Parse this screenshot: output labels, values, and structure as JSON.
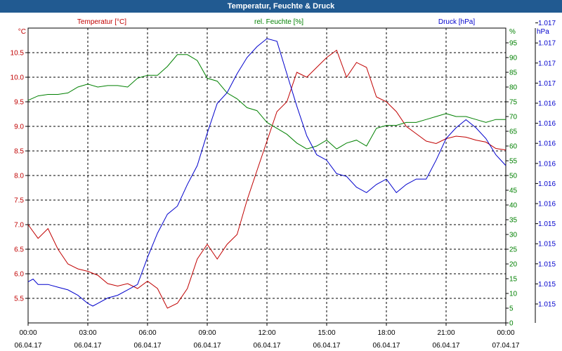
{
  "title": "Temperatur, Feuchte & Druck",
  "chart_data": {
    "type": "line",
    "grid": true,
    "x_start": "2017-04-06T00:00",
    "x_end": "2017-04-07T00:00",
    "x_ticks": [
      {
        "time": "00:00",
        "date": "06.04.17"
      },
      {
        "time": "03:00",
        "date": "06.04.17"
      },
      {
        "time": "06:00",
        "date": "06.04.17"
      },
      {
        "time": "09:00",
        "date": "06.04.17"
      },
      {
        "time": "12:00",
        "date": "06.04.17"
      },
      {
        "time": "15:00",
        "date": "06.04.17"
      },
      {
        "time": "18:00",
        "date": "06.04.17"
      },
      {
        "time": "21:00",
        "date": "06.04.17"
      },
      {
        "time": "00:00",
        "date": "07.04.17"
      }
    ],
    "axes": {
      "temperature": {
        "label": "Temperatur [°C]",
        "unit": "°C",
        "color": "#c00000",
        "range": [
          5.0,
          11.0
        ],
        "ticks": [
          "5.5",
          "6.0",
          "6.5",
          "7.0",
          "7.5",
          "8.0",
          "8.5",
          "9.0",
          "9.5",
          "10.0",
          "10.5"
        ]
      },
      "humidity": {
        "label": "rel. Feuchte [%]",
        "unit": "%",
        "color": "#008000",
        "range": [
          0,
          100
        ],
        "ticks": [
          "0",
          "5",
          "10",
          "15",
          "20",
          "25",
          "30",
          "35",
          "40",
          "45",
          "50",
          "55",
          "60",
          "65",
          "70",
          "75",
          "80",
          "85",
          "90",
          "95"
        ]
      },
      "pressure": {
        "label": "Druck [hPa]",
        "unit": "hPa",
        "color": "#0000cc",
        "ticks": [
          "1.015",
          "1.015",
          "1.015",
          "1.015",
          "1.015",
          "1.016",
          "1.016",
          "1.016",
          "1.016",
          "1.016",
          "1.016",
          "1.017",
          "1.017",
          "1.017",
          "1.017",
          "1.017",
          "1.017"
        ]
      }
    },
    "series": [
      {
        "name": "Temperatur [°C]",
        "axis": "temperature",
        "color": "#c00000",
        "x": [
          "00:00",
          "00:30",
          "01:00",
          "01:30",
          "02:00",
          "02:30",
          "03:00",
          "03:30",
          "04:00",
          "04:30",
          "05:00",
          "05:30",
          "06:00",
          "06:30",
          "07:00",
          "07:30",
          "08:00",
          "08:30",
          "09:00",
          "09:30",
          "10:00",
          "10:30",
          "11:00",
          "11:30",
          "12:00",
          "12:30",
          "13:00",
          "13:30",
          "14:00",
          "14:30",
          "15:00",
          "15:30",
          "16:00",
          "16:30",
          "17:00",
          "17:30",
          "18:00",
          "18:30",
          "19:00",
          "19:30",
          "20:00",
          "20:30",
          "21:00",
          "21:30",
          "22:00",
          "22:30",
          "23:00",
          "23:30",
          "24:00"
        ],
        "y": [
          7.0,
          6.72,
          6.92,
          6.5,
          6.2,
          6.1,
          6.05,
          5.97,
          5.8,
          5.75,
          5.8,
          5.7,
          5.85,
          5.7,
          5.3,
          5.4,
          5.7,
          6.3,
          6.6,
          6.3,
          6.6,
          6.8,
          7.5,
          8.1,
          8.7,
          9.3,
          9.5,
          10.1,
          10.0,
          10.2,
          10.4,
          10.55,
          10.0,
          10.3,
          10.2,
          9.6,
          9.5,
          9.3,
          9.0,
          8.85,
          8.7,
          8.65,
          8.75,
          8.8,
          8.78,
          8.72,
          8.68,
          8.55,
          8.52
        ]
      },
      {
        "name": "rel. Feuchte [%]",
        "axis": "humidity",
        "color": "#008000",
        "x": [
          "00:00",
          "00:30",
          "01:00",
          "01:30",
          "02:00",
          "02:30",
          "03:00",
          "03:30",
          "04:00",
          "04:30",
          "05:00",
          "05:30",
          "06:00",
          "06:30",
          "07:00",
          "07:30",
          "08:00",
          "08:30",
          "09:00",
          "09:30",
          "10:00",
          "10:30",
          "11:00",
          "11:30",
          "12:00",
          "12:30",
          "13:00",
          "13:30",
          "14:00",
          "14:30",
          "15:00",
          "15:30",
          "16:00",
          "16:30",
          "17:00",
          "17:30",
          "18:00",
          "18:30",
          "19:00",
          "19:30",
          "20:00",
          "20:30",
          "21:00",
          "21:30",
          "22:00",
          "22:30",
          "23:00",
          "23:30",
          "24:00"
        ],
        "y": [
          75.5,
          77,
          77.5,
          77.5,
          78,
          80,
          81,
          80,
          80.5,
          80.5,
          80,
          83,
          84,
          84,
          87,
          91,
          91,
          89,
          83,
          82,
          78,
          76,
          73,
          72,
          68,
          66,
          64,
          61,
          59,
          60,
          62,
          59,
          61,
          62,
          60,
          66,
          67,
          67,
          68,
          68,
          69,
          70,
          71,
          70,
          70,
          69,
          68,
          69,
          69
        ]
      },
      {
        "name": "Druck [hPa]",
        "axis": "pressure",
        "color": "#0000cc",
        "x": [
          "00:00",
          "00:15",
          "00:30",
          "01:00",
          "01:30",
          "02:00",
          "02:30",
          "03:00",
          "03:15",
          "03:30",
          "04:00",
          "04:30",
          "05:00",
          "05:30",
          "06:00",
          "06:30",
          "07:00",
          "07:30",
          "08:00",
          "08:30",
          "09:00",
          "09:30",
          "10:00",
          "10:30",
          "11:00",
          "11:30",
          "12:00",
          "12:30",
          "13:00",
          "13:30",
          "14:00",
          "14:30",
          "15:00",
          "15:30",
          "16:00",
          "16:30",
          "17:00",
          "17:30",
          "18:00",
          "18:30",
          "19:00",
          "19:30",
          "20:00",
          "20:30",
          "21:00",
          "21:30",
          "22:00",
          "22:30",
          "23:00",
          "23:30",
          "24:00"
        ],
        "y": [
          1.0151,
          1.01512,
          1.01508,
          1.01508,
          1.01506,
          1.01504,
          1.015,
          1.01494,
          1.01492,
          1.01494,
          1.01498,
          1.015,
          1.01504,
          1.01508,
          1.01528,
          1.01546,
          1.0156,
          1.01566,
          1.01582,
          1.01596,
          1.0162,
          1.01642,
          1.0165,
          1.01664,
          1.01676,
          1.01684,
          1.0169,
          1.01688,
          1.01664,
          1.0164,
          1.01618,
          1.01604,
          1.016,
          1.0159,
          1.01588,
          1.0158,
          1.01576,
          1.01582,
          1.01586,
          1.01576,
          1.01582,
          1.01586,
          1.01586,
          1.016,
          1.01616,
          1.01624,
          1.0163,
          1.01624,
          1.01616,
          1.01604,
          1.01596
        ]
      }
    ]
  }
}
